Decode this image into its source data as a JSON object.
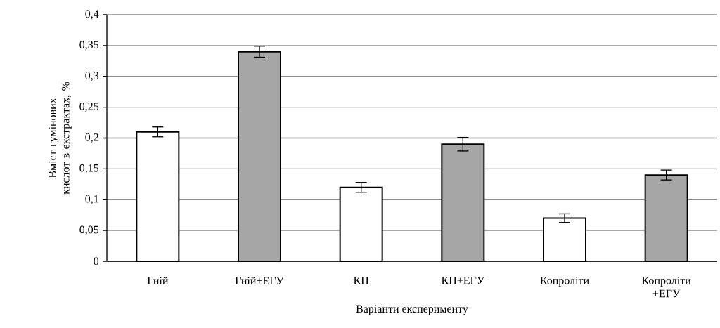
{
  "chart_data": {
    "type": "bar",
    "xlabel": "Варіанти експерименту",
    "ylabel": "Вміст гумінових кислот в екстрактах, %",
    "categories": [
      "Гній",
      "Гній+ЕГУ",
      "КП",
      "КП+ЕГУ",
      "Копроліти",
      "Копроліти +ЕГУ"
    ],
    "values": [
      0.21,
      0.34,
      0.12,
      0.19,
      0.07,
      0.14
    ],
    "errors": [
      0.008,
      0.009,
      0.008,
      0.011,
      0.007,
      0.008
    ],
    "colors": [
      "#ffffff",
      "#a6a6a6",
      "#ffffff",
      "#a6a6a6",
      "#ffffff",
      "#a6a6a6"
    ],
    "ylim": [
      0,
      0.4
    ],
    "yticks": [
      0,
      {
        "value": 0.05,
        "label": "0,05"
      },
      {
        "value": 0.1,
        "label": "0,1"
      },
      {
        "value": 0.15,
        "label": "0,15"
      },
      {
        "value": 0.2,
        "label": "0,2"
      },
      {
        "value": 0.25,
        "label": "0,25"
      },
      {
        "value": 0.3,
        "label": "0,3"
      },
      {
        "value": 0.35,
        "label": "0,35"
      },
      {
        "value": 0.4,
        "label": "0,4"
      }
    ],
    "grid": "y"
  }
}
